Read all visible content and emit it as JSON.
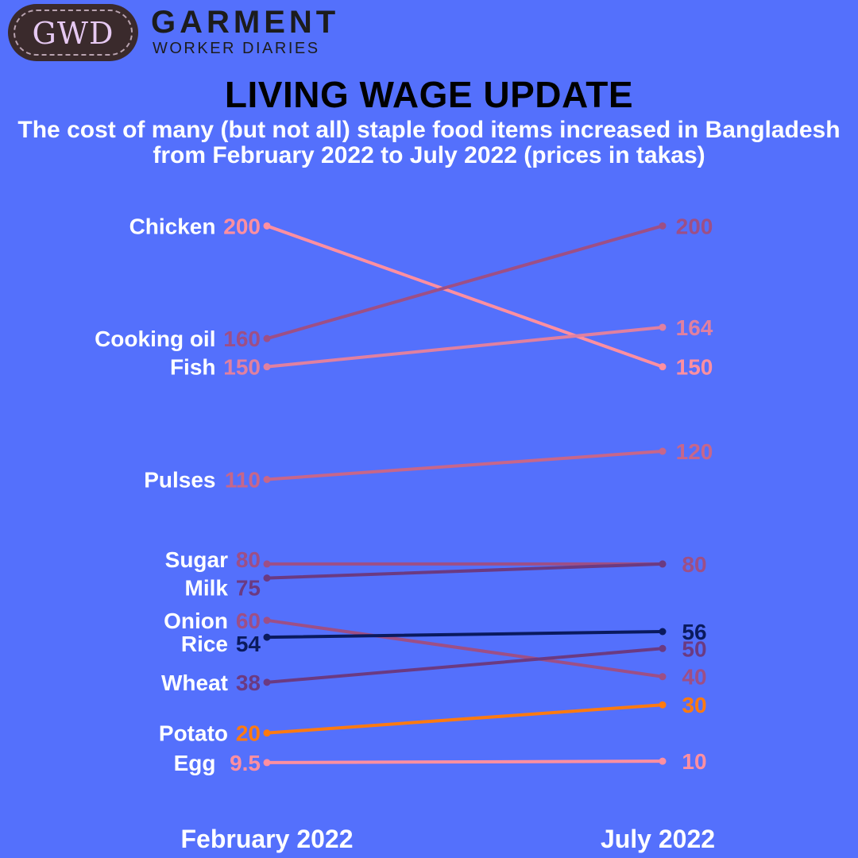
{
  "brand": {
    "logo_text": "GWD",
    "name": "GARMENT",
    "tagline": "WORKER DIARIES"
  },
  "colors": {
    "background": "#5470fc",
    "light_pink": "#ff8fa0",
    "rose": "#c7668a",
    "mauve": "#9d4f86",
    "purple": "#6b3a82",
    "navy": "#0a1a5e",
    "orange": "#ff7a10"
  },
  "chart_data": {
    "type": "slope",
    "title": "LIVING WAGE UPDATE",
    "subtitle": "The cost of many (but not all) staple food items increased in Bangladesh from February 2022 to July 2022 (prices in takas)",
    "x": [
      "February 2022",
      "July 2022"
    ],
    "series": [
      {
        "name": "Chicken",
        "values": [
          200,
          150
        ],
        "labels": [
          "200",
          "150"
        ],
        "color": "#ff8fa0"
      },
      {
        "name": "Cooking oil",
        "values": [
          160,
          200
        ],
        "labels": [
          "160",
          "200"
        ],
        "color": "#9d4f86"
      },
      {
        "name": "Fish",
        "values": [
          150,
          164
        ],
        "labels": [
          "150",
          "164"
        ],
        "color": "#e080a0"
      },
      {
        "name": "Pulses",
        "values": [
          110,
          120
        ],
        "labels": [
          "110",
          "120"
        ],
        "color": "#c7668a"
      },
      {
        "name": "Sugar",
        "values": [
          80,
          80
        ],
        "labels": [
          "80",
          "80"
        ],
        "color": "#9d4f86"
      },
      {
        "name": "Milk",
        "values": [
          75,
          80
        ],
        "labels": [
          "75",
          ""
        ],
        "color": "#6b3a82"
      },
      {
        "name": "Onion",
        "values": [
          60,
          40
        ],
        "labels": [
          "60",
          "40"
        ],
        "color": "#9d4f86"
      },
      {
        "name": "Rice",
        "values": [
          54,
          56
        ],
        "labels": [
          "54",
          "56"
        ],
        "color": "#0a1a5e"
      },
      {
        "name": "Wheat",
        "values": [
          38,
          50
        ],
        "labels": [
          "38",
          "50"
        ],
        "color": "#6b3a82"
      },
      {
        "name": "Potato",
        "values": [
          20,
          30
        ],
        "labels": [
          "20",
          "30"
        ],
        "color": "#ff7a10"
      },
      {
        "name": "Egg",
        "values": [
          9.5,
          10
        ],
        "labels": [
          "9.5",
          "10"
        ],
        "color": "#ff8fa0"
      }
    ]
  }
}
